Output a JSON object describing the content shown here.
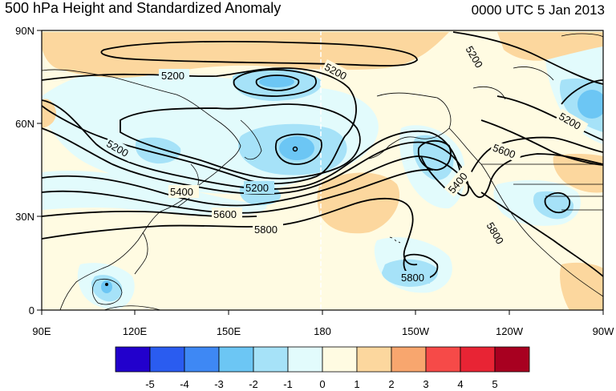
{
  "title": "500 hPa Height and Standardized Anomaly",
  "timestamp": "0000 UTC 5 Jan 2013",
  "axes": {
    "lat_ticks": [
      "90N",
      "60N",
      "30N",
      "0"
    ],
    "lon_ticks": [
      "90E",
      "120E",
      "150E",
      "180",
      "150W",
      "120W",
      "90W"
    ]
  },
  "colorbar": {
    "labels": [
      "-5",
      "-4",
      "-3",
      "-2",
      "-1",
      "0",
      "1",
      "2",
      "3",
      "4",
      "5"
    ],
    "colors": [
      "#2200cc",
      "#2a5cf0",
      "#3e88f4",
      "#6cc6f4",
      "#a6e2f8",
      "#e2fbfc",
      "#fffbe2",
      "#fcd79e",
      "#f8a66e",
      "#f64a48",
      "#e82434",
      "#a80020"
    ]
  },
  "contours": [
    {
      "label": "5200",
      "color": "#000000"
    },
    {
      "label": "5200",
      "color": "#000000"
    },
    {
      "label": "5200",
      "color": "#000000"
    },
    {
      "label": "5200",
      "color": "#000000"
    },
    {
      "label": "5200",
      "color": "#000000"
    },
    {
      "label": "5200",
      "color": "#000000"
    },
    {
      "label": "5400",
      "color": "#000000"
    },
    {
      "label": "5400",
      "color": "#000000"
    },
    {
      "label": "5600",
      "color": "#000000"
    },
    {
      "label": "5600",
      "color": "#000000"
    },
    {
      "label": "5800",
      "color": "#000000"
    },
    {
      "label": "5800",
      "color": "#000000"
    },
    {
      "label": "5800",
      "color": "#000000"
    }
  ]
}
